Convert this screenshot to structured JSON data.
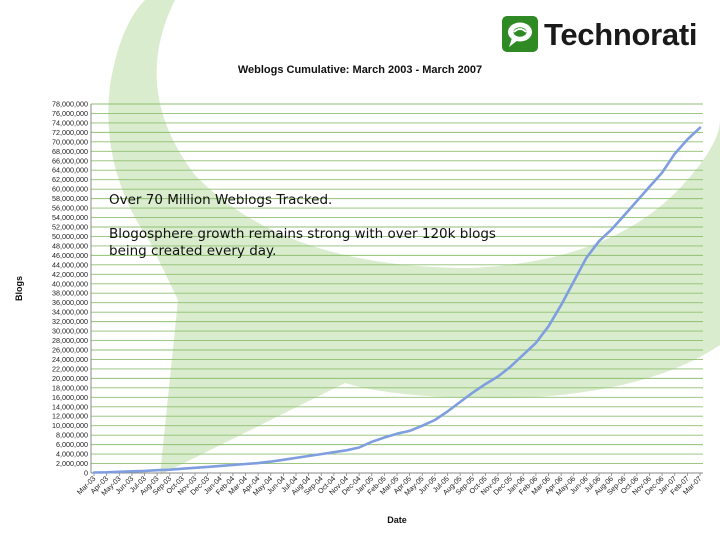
{
  "brand": {
    "name": "Technorati",
    "green": "#2f8a24"
  },
  "annotation": {
    "headline": "Over 70 Million Weblogs Tracked.",
    "body": "Blogosphere growth remains strong with over 120k blogs being created every day."
  },
  "chart_data": {
    "type": "line",
    "title": "Weblogs Cumulative: March 2003 - March 2007",
    "xlabel": "Date",
    "ylabel": "Blogs",
    "ylim": [
      0,
      78000000
    ],
    "ytick_step": 2000000,
    "grid": true,
    "legend": "none",
    "line_color": "#7e9ee0",
    "categories": [
      "Mar-03",
      "Apr-03",
      "May-03",
      "Jun-03",
      "Jul-03",
      "Aug-03",
      "Sep-03",
      "Oct-03",
      "Nov-03",
      "Dec-03",
      "Jan-04",
      "Feb-04",
      "Mar-04",
      "Apr-04",
      "May-04",
      "Jun-04",
      "Jul-04",
      "Aug-04",
      "Sep-04",
      "Oct-04",
      "Nov-04",
      "Dec-04",
      "Jan-05",
      "Feb-05",
      "Mar-05",
      "Apr-05",
      "May-05",
      "Jun-05",
      "Jul-05",
      "Aug-05",
      "Sep-05",
      "Oct-05",
      "Nov-05",
      "Dec-05",
      "Jan-06",
      "Feb-06",
      "Mar-06",
      "Apr-06",
      "May-06",
      "Jun-06",
      "Jul-06",
      "Aug-06",
      "Sep-06",
      "Oct-06",
      "Nov-06",
      "Dec-06",
      "Jan-07",
      "Feb-07",
      "Mar-07"
    ],
    "series": [
      {
        "values": [
          100000,
          150000,
          250000,
          350000,
          450000,
          600000,
          700000,
          900000,
          1100000,
          1300000,
          1500000,
          1700000,
          1900000,
          2100000,
          2400000,
          2800000,
          3200000,
          3600000,
          4000000,
          4400000,
          4800000,
          5400000,
          6600000,
          7500000,
          8300000,
          8900000,
          10000000,
          11200000,
          13000000,
          15000000,
          17000000,
          18800000,
          20400000,
          22500000,
          25000000,
          27500000,
          31000000,
          35500000,
          40500000,
          45500000,
          49000000,
          51500000,
          54500000,
          57500000,
          60500000,
          63500000,
          67500000,
          70500000,
          73000000
        ]
      }
    ]
  }
}
